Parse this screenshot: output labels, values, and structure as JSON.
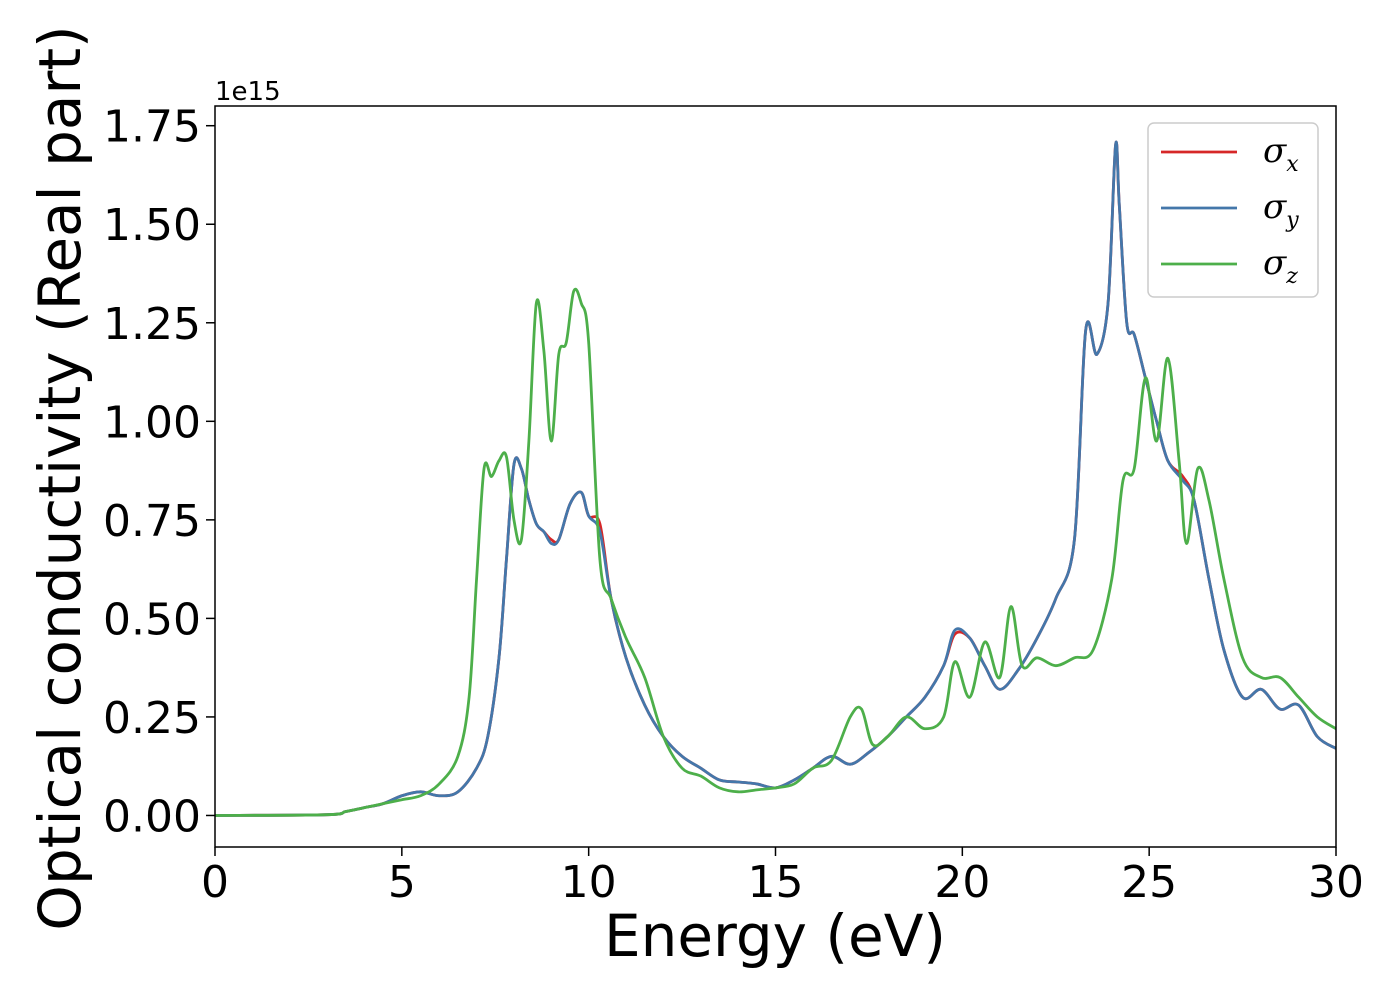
{
  "chart_data": {
    "type": "line",
    "xlabel": "Energy (eV)",
    "ylabel": "Optical conductivity (Real part)",
    "offset_text": "1e15",
    "xlim": [
      0,
      30
    ],
    "ylim": [
      -0.08,
      1.8
    ],
    "xticks": [
      0,
      5,
      10,
      15,
      20,
      25,
      30
    ],
    "xtick_labels": [
      "0",
      "5",
      "10",
      "15",
      "20",
      "25",
      "30"
    ],
    "yticks": [
      0.0,
      0.25,
      0.5,
      0.75,
      1.0,
      1.25,
      1.5,
      1.75
    ],
    "ytick_labels": [
      "0.00",
      "0.25",
      "0.50",
      "0.75",
      "1.00",
      "1.25",
      "1.50",
      "1.75"
    ],
    "legend_position": "top-right",
    "grid": false,
    "series": [
      {
        "name": "σx",
        "symbol": "σ",
        "subscript": "x",
        "color": "#d62728",
        "x": [
          0,
          3,
          3.5,
          4,
          4.5,
          5,
          5.5,
          6,
          6.5,
          7,
          7.3,
          7.6,
          7.8,
          8,
          8.2,
          8.4,
          8.6,
          8.8,
          9,
          9.2,
          9.5,
          9.8,
          10,
          10.3,
          10.6,
          11,
          11.5,
          12,
          12.5,
          13,
          13.5,
          14,
          14.5,
          15,
          15.5,
          16,
          16.5,
          17,
          17.5,
          18,
          18.5,
          19,
          19.5,
          19.8,
          20.2,
          20.6,
          21,
          21.5,
          22,
          22.5,
          23,
          23.3,
          23.6,
          23.9,
          24.1,
          24.2,
          24.4,
          24.6,
          24.9,
          25.2,
          25.5,
          25.9,
          26.2,
          26.6,
          27,
          27.5,
          28,
          28.5,
          29,
          29.5,
          30
        ],
        "y": [
          0,
          0.002,
          0.01,
          0.02,
          0.03,
          0.05,
          0.06,
          0.05,
          0.06,
          0.12,
          0.2,
          0.4,
          0.65,
          0.89,
          0.88,
          0.8,
          0.74,
          0.72,
          0.7,
          0.7,
          0.79,
          0.82,
          0.76,
          0.74,
          0.55,
          0.4,
          0.28,
          0.2,
          0.15,
          0.12,
          0.09,
          0.085,
          0.08,
          0.07,
          0.09,
          0.12,
          0.15,
          0.13,
          0.16,
          0.2,
          0.25,
          0.3,
          0.38,
          0.46,
          0.45,
          0.38,
          0.32,
          0.37,
          0.45,
          0.55,
          0.7,
          1.23,
          1.17,
          1.3,
          1.7,
          1.55,
          1.25,
          1.22,
          1.11,
          1.0,
          0.9,
          0.86,
          0.8,
          0.6,
          0.42,
          0.3,
          0.32,
          0.27,
          0.28,
          0.2,
          0.17
        ]
      },
      {
        "name": "σy",
        "symbol": "σ",
        "subscript": "y",
        "color": "#4477aa",
        "x": [
          0,
          3,
          3.5,
          4,
          4.5,
          5,
          5.5,
          6,
          6.5,
          7,
          7.3,
          7.6,
          7.8,
          8,
          8.2,
          8.4,
          8.6,
          8.8,
          9,
          9.2,
          9.5,
          9.8,
          10,
          10.3,
          10.6,
          11,
          11.5,
          12,
          12.5,
          13,
          13.5,
          14,
          14.5,
          15,
          15.5,
          16,
          16.5,
          17,
          17.5,
          18,
          18.5,
          19,
          19.5,
          19.8,
          20.2,
          20.6,
          21,
          21.5,
          22,
          22.5,
          23,
          23.3,
          23.6,
          23.9,
          24.1,
          24.2,
          24.4,
          24.6,
          24.9,
          25.2,
          25.5,
          25.9,
          26.2,
          26.6,
          27,
          27.5,
          28,
          28.5,
          29,
          29.5,
          30
        ],
        "y": [
          0,
          0.002,
          0.01,
          0.02,
          0.03,
          0.05,
          0.06,
          0.05,
          0.06,
          0.12,
          0.2,
          0.4,
          0.65,
          0.89,
          0.88,
          0.8,
          0.74,
          0.72,
          0.69,
          0.7,
          0.79,
          0.82,
          0.76,
          0.72,
          0.55,
          0.4,
          0.28,
          0.2,
          0.15,
          0.12,
          0.09,
          0.085,
          0.08,
          0.07,
          0.09,
          0.12,
          0.15,
          0.13,
          0.16,
          0.2,
          0.25,
          0.3,
          0.38,
          0.47,
          0.45,
          0.38,
          0.32,
          0.37,
          0.45,
          0.55,
          0.7,
          1.23,
          1.17,
          1.3,
          1.7,
          1.55,
          1.25,
          1.22,
          1.11,
          1.0,
          0.9,
          0.85,
          0.8,
          0.6,
          0.42,
          0.3,
          0.32,
          0.27,
          0.28,
          0.2,
          0.17
        ]
      },
      {
        "name": "σz",
        "symbol": "σ",
        "subscript": "z",
        "color": "#4daf4a",
        "x": [
          0,
          3,
          3.5,
          4,
          4.5,
          5,
          5.5,
          6,
          6.5,
          6.8,
          7,
          7.2,
          7.4,
          7.6,
          7.8,
          8,
          8.2,
          8.4,
          8.6,
          8.8,
          9,
          9.2,
          9.4,
          9.6,
          9.8,
          10,
          10.3,
          10.6,
          11,
          11.5,
          12,
          12.5,
          13,
          13.5,
          14,
          14.5,
          15,
          15.5,
          16,
          16.5,
          17,
          17.3,
          17.6,
          18,
          18.5,
          19,
          19.5,
          19.8,
          20.2,
          20.6,
          21,
          21.3,
          21.6,
          22,
          22.5,
          23,
          23.5,
          24,
          24.3,
          24.6,
          24.9,
          25.2,
          25.5,
          25.8,
          26,
          26.3,
          26.6,
          27,
          27.5,
          28,
          28.5,
          29,
          29.5,
          30
        ],
        "y": [
          0,
          0.002,
          0.01,
          0.02,
          0.03,
          0.04,
          0.05,
          0.08,
          0.15,
          0.3,
          0.6,
          0.88,
          0.86,
          0.9,
          0.91,
          0.75,
          0.7,
          0.95,
          1.3,
          1.18,
          0.95,
          1.17,
          1.2,
          1.33,
          1.3,
          1.2,
          0.65,
          0.55,
          0.45,
          0.35,
          0.2,
          0.12,
          0.1,
          0.07,
          0.06,
          0.065,
          0.07,
          0.08,
          0.12,
          0.14,
          0.25,
          0.27,
          0.18,
          0.2,
          0.25,
          0.22,
          0.25,
          0.39,
          0.3,
          0.44,
          0.35,
          0.53,
          0.38,
          0.4,
          0.38,
          0.4,
          0.42,
          0.6,
          0.85,
          0.88,
          1.11,
          0.95,
          1.16,
          0.9,
          0.69,
          0.88,
          0.8,
          0.6,
          0.4,
          0.35,
          0.35,
          0.3,
          0.25,
          0.22
        ]
      }
    ]
  }
}
